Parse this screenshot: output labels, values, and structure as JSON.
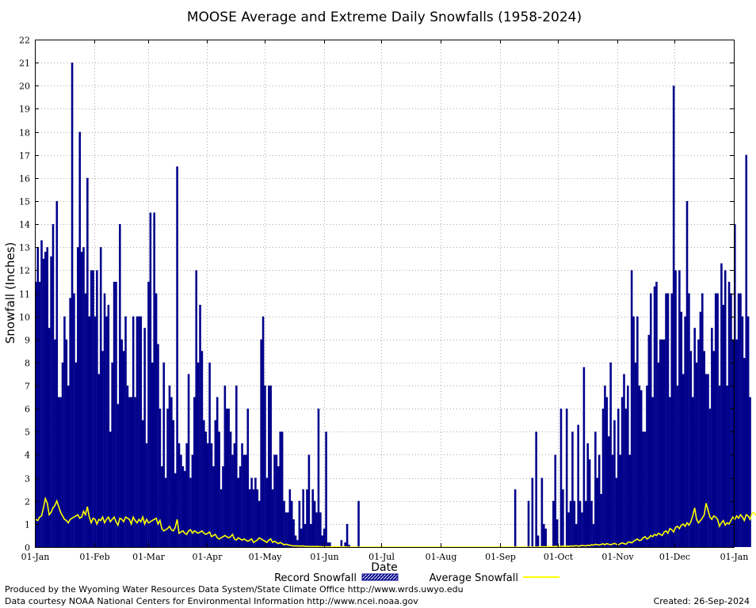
{
  "chart_data": {
    "type": "bar",
    "title": "MOOSE Average and Extreme Daily Snowfalls (1958-2024)",
    "xlabel": "Date",
    "ylabel": "Snowfall (Inches)",
    "ylim": [
      0,
      22
    ],
    "yticks": [
      0,
      1,
      2,
      3,
      4,
      5,
      6,
      7,
      8,
      9,
      10,
      11,
      12,
      13,
      14,
      15,
      16,
      17,
      18,
      19,
      20,
      21,
      22
    ],
    "xticks": [
      "01-Jan",
      "01-Feb",
      "01-Mar",
      "01-Apr",
      "01-May",
      "01-Jun",
      "01-Jul",
      "01-Aug",
      "01-Sep",
      "01-Oct",
      "01-Nov",
      "01-Dec",
      "01-Jan"
    ],
    "xtick_days": [
      1,
      32,
      60,
      91,
      121,
      152,
      182,
      213,
      244,
      274,
      305,
      335,
      366
    ],
    "days_in_year": 366,
    "grid": true,
    "legend": [
      {
        "label": "Record Snowfall",
        "style": "hatched-bar",
        "color": "#00008b"
      },
      {
        "label": "Average Snowfall",
        "style": "line",
        "color": "#ffff00"
      }
    ],
    "series": [
      {
        "name": "Record Snowfall",
        "color": "#00008b",
        "values": [
          11.5,
          13,
          11.5,
          13.3,
          12.5,
          12.8,
          13,
          9.5,
          12.6,
          14,
          9,
          15,
          6.5,
          6.5,
          8,
          10,
          9,
          7,
          10.8,
          21,
          11,
          8,
          13,
          18,
          12.8,
          13,
          11,
          16,
          10,
          12,
          12,
          10,
          12,
          7.5,
          13,
          8.5,
          11,
          10,
          10.5,
          5,
          8,
          11.5,
          11.5,
          6.2,
          14,
          9,
          8.5,
          10,
          7,
          6.5,
          6.5,
          10,
          6.5,
          10,
          10,
          10,
          5.5,
          9.5,
          4.5,
          11.5,
          14.5,
          8,
          14.5,
          11,
          8.8,
          6,
          3.5,
          8,
          3,
          6,
          7,
          6.5,
          5.5,
          3.2,
          16.5,
          4.5,
          4,
          3.5,
          3.3,
          4.5,
          7.5,
          3,
          4,
          6.5,
          12,
          8,
          10.5,
          8.5,
          5.5,
          5,
          4.5,
          8,
          4.5,
          3.5,
          5.5,
          6.5,
          5,
          2.5,
          3.5,
          7,
          6,
          6,
          5,
          4,
          4.5,
          7,
          3,
          3.5,
          4.5,
          4,
          4,
          6,
          2.5,
          3,
          2.5,
          3,
          2.5,
          2,
          9,
          10,
          7,
          3,
          7,
          7,
          2.5,
          4,
          4,
          3.5,
          5,
          5,
          2,
          1.5,
          1.5,
          2.5,
          2,
          1.2,
          0.5,
          0.3,
          2,
          0.8,
          2.5,
          1,
          2.5,
          4,
          1,
          2.5,
          2,
          1.5,
          6,
          1.5,
          0.5,
          0.8,
          5,
          0.2,
          0.2,
          0,
          0,
          0,
          0,
          0,
          0.3,
          0,
          0.2,
          1,
          0.1,
          0,
          0,
          0,
          0,
          2,
          0,
          0,
          0,
          0,
          0,
          0,
          0,
          0,
          0,
          0,
          0,
          0,
          0,
          0,
          0,
          0,
          0,
          0,
          0,
          0,
          0,
          0,
          0,
          0,
          0,
          0,
          0,
          0,
          0,
          0,
          0,
          0,
          0,
          0,
          0,
          0,
          0,
          0,
          0,
          0,
          0,
          0,
          0,
          0,
          0,
          0,
          0,
          0,
          0,
          0,
          0,
          0,
          0,
          0,
          0,
          0,
          0,
          0,
          0,
          0,
          0,
          0,
          0,
          0,
          0,
          0,
          0,
          0,
          0,
          0,
          0,
          0,
          0,
          0,
          0,
          0,
          0,
          0,
          0,
          0,
          0,
          2.5,
          0,
          0,
          0,
          0,
          0,
          0,
          2,
          0,
          3,
          0,
          5,
          0.5,
          0,
          3,
          1,
          0.8,
          0,
          0,
          0,
          2,
          4,
          1.2,
          0,
          6,
          2.5,
          0,
          6,
          1.5,
          2,
          5,
          2,
          1,
          5.3,
          2,
          1.5,
          7.8,
          2,
          4.5,
          3.8,
          2,
          1,
          5,
          3,
          4,
          2.3,
          6,
          7,
          6.5,
          4.8,
          8,
          4,
          5.5,
          3,
          6,
          4,
          6.5,
          7.5,
          6,
          7,
          4,
          12,
          10,
          8,
          10,
          7,
          6.8,
          5,
          5,
          7,
          9.2,
          11,
          6.5,
          11.3,
          11.5,
          8,
          9,
          9,
          9,
          11,
          11,
          6.5,
          11,
          20,
          12,
          7,
          12,
          10.2,
          7.5,
          10,
          15,
          11,
          8.5,
          6.5,
          9.5,
          8,
          9,
          10.2,
          11,
          8.5,
          7.5,
          7.5,
          6,
          9.5,
          8.5,
          11,
          11,
          7,
          12.3,
          10.5,
          12,
          7,
          11.5,
          11,
          9,
          14,
          9,
          11,
          11,
          10,
          8.2,
          17,
          10,
          6.5
        ]
      },
      {
        "name": "Average Snowfall",
        "color": "#ffff00",
        "values": [
          1.2,
          1.15,
          1.3,
          1.35,
          1.7,
          2.1,
          1.9,
          1.4,
          1.5,
          1.7,
          1.8,
          2.0,
          1.75,
          1.5,
          1.35,
          1.2,
          1.15,
          1.05,
          1.2,
          1.25,
          1.3,
          1.35,
          1.4,
          1.25,
          1.3,
          1.55,
          1.4,
          1.75,
          1.3,
          1.05,
          1.25,
          1.2,
          1.0,
          1.2,
          1.15,
          1.3,
          1.05,
          1.2,
          1.3,
          1.1,
          1.2,
          1.3,
          1.1,
          0.95,
          1.25,
          1.2,
          1.1,
          1.3,
          1.25,
          1.2,
          1.0,
          1.3,
          1.15,
          1.05,
          1.2,
          1.1,
          1.3,
          1.0,
          1.2,
          1.05,
          1.1,
          1.15,
          1.2,
          1.25,
          1.0,
          1.15,
          0.8,
          0.7,
          0.75,
          0.8,
          0.9,
          0.75,
          0.7,
          0.85,
          1.2,
          0.6,
          0.65,
          0.7,
          0.6,
          0.55,
          0.7,
          0.75,
          0.6,
          0.7,
          0.65,
          0.6,
          0.65,
          0.7,
          0.6,
          0.55,
          0.6,
          0.65,
          0.45,
          0.5,
          0.55,
          0.4,
          0.35,
          0.4,
          0.45,
          0.5,
          0.45,
          0.4,
          0.45,
          0.55,
          0.35,
          0.3,
          0.4,
          0.35,
          0.3,
          0.35,
          0.3,
          0.25,
          0.3,
          0.35,
          0.2,
          0.25,
          0.3,
          0.4,
          0.35,
          0.3,
          0.25,
          0.2,
          0.3,
          0.35,
          0.2,
          0.25,
          0.2,
          0.15,
          0.2,
          0.15,
          0.1,
          0.12,
          0.1,
          0.08,
          0.06,
          0.05,
          0.05,
          0.05,
          0.04,
          0.04,
          0.05,
          0.03,
          0.03,
          0.03,
          0.02,
          0.03,
          0.02,
          0.03,
          0.02,
          0.02,
          0.01,
          0.01,
          0.01,
          0.01,
          0.01,
          0.01,
          0.01,
          0.01,
          0.01,
          0.01,
          0.01,
          0.01,
          0.01,
          0,
          0,
          0,
          0,
          0,
          0,
          0,
          0,
          0,
          0,
          0,
          0,
          0,
          0,
          0,
          0,
          0,
          0,
          0,
          0,
          0,
          0,
          0,
          0,
          0,
          0,
          0,
          0,
          0,
          0,
          0,
          0,
          0,
          0,
          0,
          0,
          0,
          0,
          0,
          0,
          0,
          0,
          0,
          0,
          0,
          0,
          0,
          0,
          0,
          0,
          0,
          0,
          0,
          0,
          0,
          0,
          0,
          0,
          0,
          0,
          0,
          0,
          0,
          0,
          0,
          0,
          0,
          0,
          0,
          0,
          0,
          0,
          0,
          0,
          0,
          0,
          0,
          0,
          0,
          0,
          0,
          0,
          0,
          0,
          0,
          0,
          0,
          0,
          0,
          0,
          0,
          0,
          0,
          0,
          0,
          0,
          0,
          0,
          0,
          0,
          0,
          0.01,
          0.01,
          0.02,
          0.01,
          0.02,
          0.02,
          0.01,
          0.02,
          0.03,
          0.02,
          0.03,
          0.03,
          0.04,
          0.03,
          0.04,
          0.03,
          0.05,
          0.04,
          0.05,
          0.06,
          0.04,
          0.05,
          0.07,
          0.06,
          0.05,
          0.08,
          0.06,
          0.1,
          0.08,
          0.12,
          0.1,
          0.09,
          0.11,
          0.14,
          0.1,
          0.15,
          0.12,
          0.1,
          0.13,
          0.16,
          0.12,
          0.1,
          0.14,
          0.18,
          0.15,
          0.12,
          0.2,
          0.22,
          0.18,
          0.25,
          0.3,
          0.35,
          0.28,
          0.3,
          0.4,
          0.45,
          0.35,
          0.4,
          0.5,
          0.45,
          0.55,
          0.5,
          0.6,
          0.55,
          0.5,
          0.65,
          0.7,
          0.6,
          0.8,
          0.75,
          0.65,
          0.85,
          0.9,
          0.8,
          0.95,
          1.0,
          0.9,
          1.05,
          0.95,
          1.1,
          1.35,
          1.7,
          1.2,
          1.05,
          1.15,
          1.25,
          1.4,
          1.9,
          1.6,
          1.3,
          1.2,
          1.35,
          1.3,
          1.2,
          0.9,
          1.05,
          1.15,
          0.95,
          1.05,
          1.0,
          1.15,
          1.3,
          1.2,
          1.35,
          1.25,
          1.4,
          1.3,
          1.15,
          1.4,
          1.35,
          1.2,
          1.45,
          1.5,
          1.4,
          1.3,
          1.5,
          1.95,
          1.6,
          1.45,
          1.35,
          1.55,
          1.85,
          1.5,
          1.35
        ]
      }
    ]
  },
  "footer": {
    "credit_line1": "Produced by the Wyoming Water Resources Data System/State Climate Office http://www.wrds.uwyo.edu",
    "credit_line2": "Data courtesy NOAA National Centers for Environmental Information http://www.ncei.noaa.gov",
    "created": "Created:  26-Sep-2024"
  }
}
